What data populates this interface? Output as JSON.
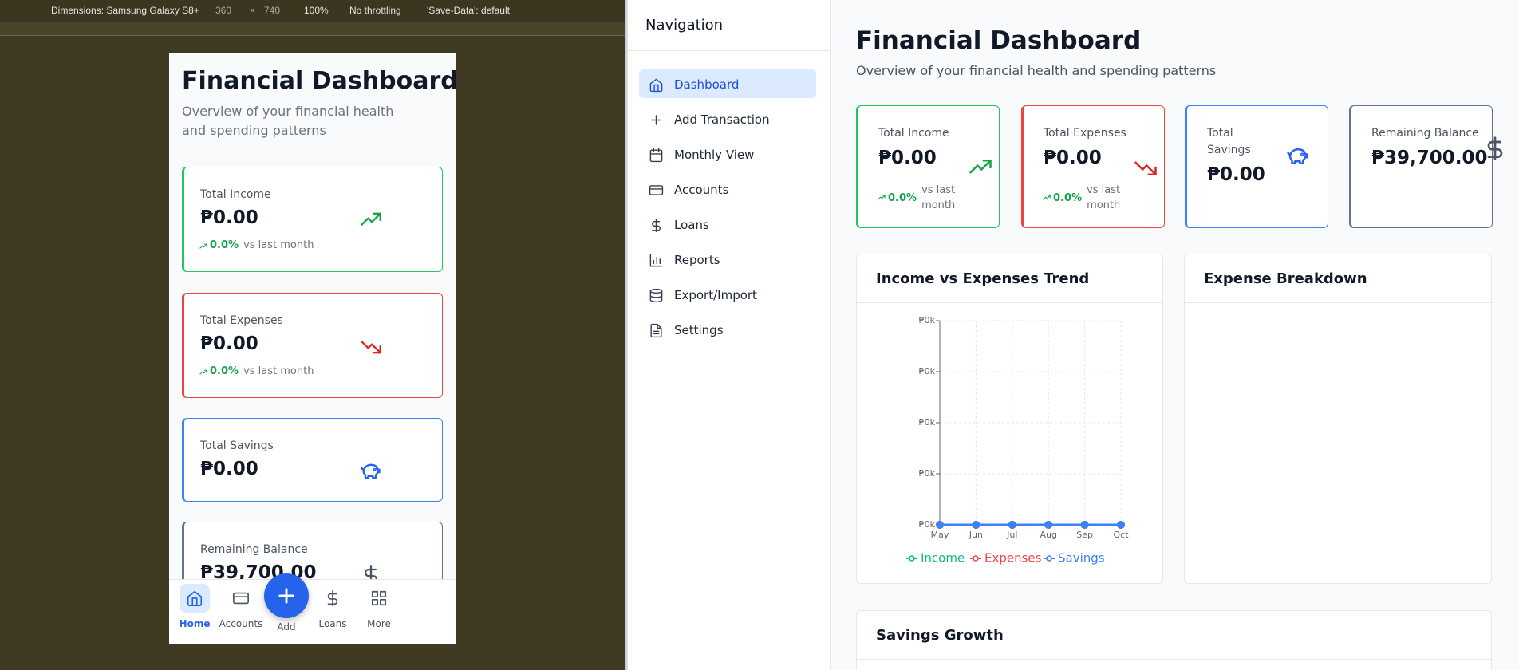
{
  "devtools": {
    "device": "Dimensions: Samsung Galaxy S8+",
    "width": "360",
    "times": "×",
    "height": "740",
    "zoom": "100%",
    "throttling": "No throttling",
    "save_data": "'Save-Data': default"
  },
  "dashboard": {
    "title": "Financial Dashboard",
    "subtitle": "Overview of your financial health and spending patterns",
    "cards": [
      {
        "label": "Total Income",
        "amount": "₱0.00",
        "change": "0.0%",
        "note": "vs last month",
        "color": "#22c55e"
      },
      {
        "label": "Total Expenses",
        "amount": "₱0.00",
        "change": "0.0%",
        "note": "vs last month",
        "color": "#ef4444"
      },
      {
        "label": "Total Savings",
        "amount": "₱0.00",
        "color": "#3b82f6"
      },
      {
        "label": "Remaining Balance",
        "amount": "₱39,700.00",
        "color": "#64748b"
      }
    ],
    "trend_chart": {
      "type": "line",
      "title": "Income vs Expenses Trend",
      "categories": [
        "May",
        "Jun",
        "Jul",
        "Aug",
        "Sep",
        "Oct"
      ],
      "series": [
        {
          "name": "Income",
          "color": "#10b981",
          "values": [
            0,
            0,
            0,
            0,
            0,
            0
          ]
        },
        {
          "name": "Expenses",
          "color": "#ef4444",
          "values": [
            0,
            0,
            0,
            0,
            0,
            0
          ]
        },
        {
          "name": "Savings",
          "color": "#3b82f6",
          "values": [
            0,
            0,
            0,
            0,
            0,
            0
          ]
        }
      ],
      "ylim": [
        0,
        4
      ],
      "yticks": [
        {
          "value": 0,
          "label": "₱0k"
        },
        {
          "value": 1,
          "label": "₱0k"
        },
        {
          "value": 2,
          "label": "₱0k"
        },
        {
          "value": 3,
          "label": "₱0k"
        },
        {
          "value": 4,
          "label": "₱0k"
        }
      ],
      "grid": true,
      "legend": "bottom"
    },
    "expense_title": "Expense Breakdown",
    "savings_title": "Savings Growth"
  },
  "sidebar": {
    "title": "Navigation",
    "items": [
      "Dashboard",
      "Add Transaction",
      "Monthly View",
      "Accounts",
      "Loans",
      "Reports",
      "Export/Import",
      "Settings"
    ]
  },
  "bottom_nav": [
    "Home",
    "Accounts",
    "Add",
    "Loans",
    "More"
  ]
}
